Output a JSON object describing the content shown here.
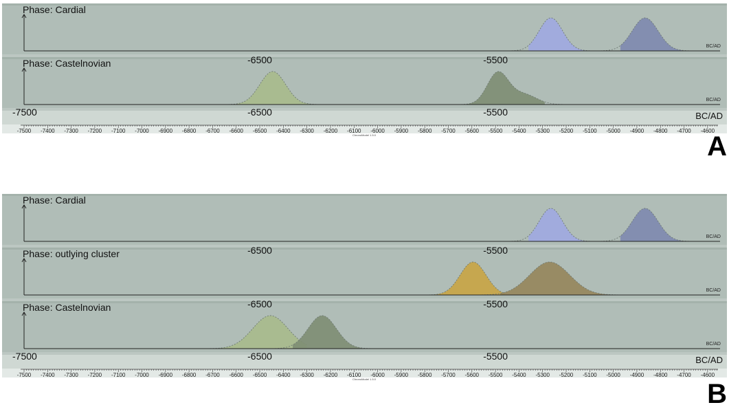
{
  "chart_data": [
    {
      "type": "area",
      "panel_label": "A",
      "x_unit_label": "BC/AD",
      "footer": "ChronoModel 1.5.0",
      "xlim": [
        -7500,
        -4550
      ],
      "xticks": [
        -7500,
        -7400,
        -7300,
        -7200,
        -7100,
        -7000,
        -6900,
        -6800,
        -6700,
        -6600,
        -6500,
        -6400,
        -6300,
        -6200,
        -6100,
        -6000,
        -5900,
        -5800,
        -5700,
        -5600,
        -5500,
        -5400,
        -5300,
        -5200,
        -5100,
        -5000,
        -4900,
        -4800,
        -4700,
        -4600
      ],
      "major_labels": [
        -7500,
        -6500,
        -5500
      ],
      "phases": [
        {
          "title": "Phase: Cardial",
          "densities": [
            {
              "color": "#9fa9e0",
              "mu": -5265,
              "sigma": 50,
              "from": -5360,
              "to": -5100,
              "tail_to": -5100
            },
            {
              "color": "#7f8aaf",
              "mu": -4865,
              "sigma": 55,
              "from": -4970,
              "to": -4700,
              "tail_to": -4640
            }
          ]
        },
        {
          "title": "Phase: Castelnovian",
          "densities": [
            {
              "color": "#a8bb8c",
              "mu": -6445,
              "sigma": 55,
              "from": -6600,
              "to": -6260,
              "tail_to": -6260
            },
            {
              "color": "#7f8e74",
              "mu": -5490,
              "sigma": 45,
              "from": -5700,
              "to": -5290,
              "tail_to": -5150,
              "shoulder": {
                "mu": -5380,
                "sigma": 55,
                "w": 0.32
              }
            }
          ]
        }
      ]
    },
    {
      "type": "area",
      "panel_label": "B",
      "x_unit_label": "BC/AD",
      "footer": "ChronoModel 1.5.0",
      "xlim": [
        -7500,
        -4550
      ],
      "xticks": [
        -7500,
        -7400,
        -7300,
        -7200,
        -7100,
        -7000,
        -6900,
        -6800,
        -6700,
        -6600,
        -6500,
        -6400,
        -6300,
        -6200,
        -6100,
        -6000,
        -5900,
        -5800,
        -5700,
        -5600,
        -5500,
        -5400,
        -5300,
        -5200,
        -5100,
        -5000,
        -4900,
        -4800,
        -4700,
        -4600
      ],
      "major_labels": [
        -7500,
        -6500,
        -5500
      ],
      "phases": [
        {
          "title": "Phase: Cardial",
          "densities": [
            {
              "color": "#9fa9e0",
              "mu": -5265,
              "sigma": 50,
              "from": -5360,
              "to": -5100,
              "tail_to": -5100
            },
            {
              "color": "#7f8aaf",
              "mu": -4865,
              "sigma": 55,
              "from": -4970,
              "to": -4700,
              "tail_to": -4640
            }
          ]
        },
        {
          "title": "Phase: outlying cluster",
          "densities": [
            {
              "color": "#c8a545",
              "mu": -5595,
              "sigma": 55,
              "from": -5800,
              "to": -5460,
              "tail_to": -5460
            },
            {
              "color": "#96875c",
              "mu": -5270,
              "sigma": 85,
              "from": -5480,
              "to": -5010,
              "tail_to": -4940
            }
          ]
        },
        {
          "title": "Phase: Castelnovian",
          "densities": [
            {
              "color": "#a8bb8c",
              "mu": -6455,
              "sigma": 75,
              "from": -6680,
              "to": -6300,
              "tail_to": -6300
            },
            {
              "color": "#7f8e74",
              "mu": -6235,
              "sigma": 60,
              "from": -6360,
              "to": -6070,
              "tail_to": -6010
            }
          ]
        }
      ]
    }
  ]
}
